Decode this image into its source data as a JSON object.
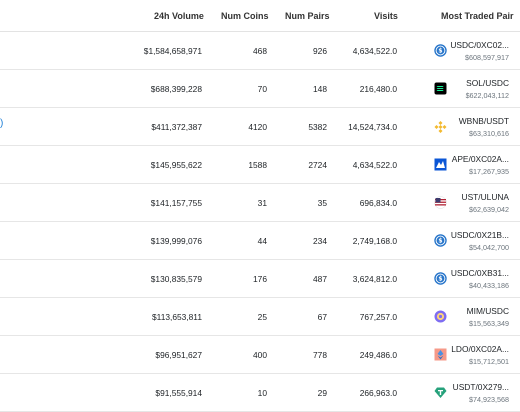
{
  "columns": [
    "24h Volume",
    "Num Coins",
    "Num Pairs",
    "Visits",
    "Most Traded Pair"
  ],
  "row_link_fragment": ")",
  "rows": [
    {
      "volume": "$1,584,658,971",
      "coins": "468",
      "pairs": "926",
      "visits": "4,634,522.0",
      "pair": "USDC/0XC02...",
      "pair_volume": "$608,597,917",
      "icon": "usdc-icon",
      "icon_color": "#2775ca"
    },
    {
      "volume": "$688,399,228",
      "coins": "70",
      "pairs": "148",
      "visits": "216,480.0",
      "pair": "SOL/USDC",
      "pair_volume": "$622,043,112",
      "icon": "sol-icon",
      "icon_color": "#000000"
    },
    {
      "volume": "$411,372,387",
      "coins": "4120",
      "pairs": "5382",
      "visits": "14,524,734.0",
      "pair": "WBNB/USDT",
      "pair_volume": "$63,310,616",
      "icon": "bnb-icon",
      "icon_color": "#f3ba2f"
    },
    {
      "volume": "$145,955,622",
      "coins": "1588",
      "pairs": "2724",
      "visits": "4,634,522.0",
      "pair": "APE/0XC02A...",
      "pair_volume": "$17,267,935",
      "icon": "ape-icon",
      "icon_color": "#0b56d6"
    },
    {
      "volume": "$141,157,755",
      "coins": "31",
      "pairs": "35",
      "visits": "696,834.0",
      "pair": "UST/ULUNA",
      "pair_volume": "$62,639,042",
      "icon": "ust-flag-icon",
      "icon_color": "#b22234"
    },
    {
      "volume": "$139,999,076",
      "coins": "44",
      "pairs": "234",
      "visits": "2,749,168.0",
      "pair": "USDC/0X21B...",
      "pair_volume": "$54,042,700",
      "icon": "usdc-icon",
      "icon_color": "#2775ca"
    },
    {
      "volume": "$130,835,579",
      "coins": "176",
      "pairs": "487",
      "visits": "3,624,812.0",
      "pair": "USDC/0XB31...",
      "pair_volume": "$40,433,186",
      "icon": "usdc-icon",
      "icon_color": "#2775ca"
    },
    {
      "volume": "$113,653,811",
      "coins": "25",
      "pairs": "67",
      "visits": "767,257.0",
      "pair": "MIM/USDC",
      "pair_volume": "$15,563,349",
      "icon": "mim-icon",
      "icon_color": "#7e6df2"
    },
    {
      "volume": "$96,951,627",
      "coins": "400",
      "pairs": "778",
      "visits": "249,486.0",
      "pair": "LDO/0XC02A...",
      "pair_volume": "$15,712,501",
      "icon": "ldo-icon",
      "icon_color": "#f69988"
    },
    {
      "volume": "$91,555,914",
      "coins": "10",
      "pairs": "29",
      "visits": "266,963.0",
      "pair": "USDT/0X279...",
      "pair_volume": "$74,923,568",
      "icon": "usdt-icon",
      "icon_color": "#26a17b"
    }
  ]
}
